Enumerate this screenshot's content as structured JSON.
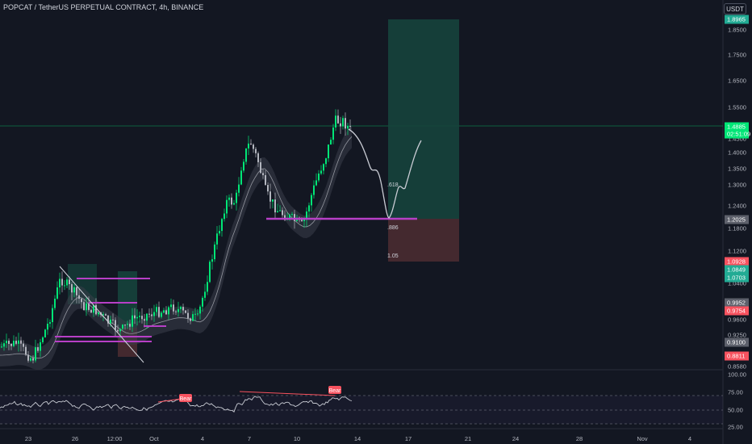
{
  "header": {
    "title": "POPCAT / TetherUS PERPETUAL CONTRACT, 4h, BINANCE",
    "currency": "USDT"
  },
  "price_axis": {
    "ticks": [
      "1.8500",
      "1.7500",
      "1.6500",
      "1.5500",
      "1.4500",
      "1.4000",
      "1.3500",
      "1.3000",
      "1.2400",
      "1.1800",
      "1.1200",
      "1.0400",
      "0.9600",
      "0.9250",
      "0.8580"
    ],
    "badges": [
      {
        "text": "1.8965",
        "color": "#22ab94"
      },
      {
        "text": "1.4885",
        "color": "#00e676"
      },
      {
        "text": "02:51:09",
        "color": "#00e676"
      },
      {
        "text": "1.2025",
        "color": "#5d606b"
      },
      {
        "text": "1.0928",
        "color": "#f7525f"
      },
      {
        "text": "1.0849",
        "color": "#22ab94"
      },
      {
        "text": "1.0703",
        "color": "#22ab94"
      },
      {
        "text": "0.9952",
        "color": "#5d606b"
      },
      {
        "text": "0.9754",
        "color": "#f7525f"
      },
      {
        "text": "0.9100",
        "color": "#5d606b"
      },
      {
        "text": "0.8811",
        "color": "#f7525f"
      }
    ]
  },
  "rsi_axis": {
    "ticks": [
      "100.00",
      "75.00",
      "50.00",
      "25.00"
    ]
  },
  "time_axis": {
    "ticks": [
      "23",
      "26",
      "12:00",
      "Oct",
      "4",
      "7",
      "10",
      "14",
      "17",
      "21",
      "24",
      "28",
      "Nov",
      "4"
    ]
  },
  "annotations": {
    "fib_labels": [
      ".618",
      ".886",
      "1.05"
    ],
    "bear_labels": [
      "Bear",
      "Bear"
    ]
  },
  "colors": {
    "background": "#131722",
    "bull": "#00e676",
    "bear": "#b2b5be",
    "profit_zone": "#16433c",
    "loss_zone": "#4a2b31",
    "level_line": "#b73fc6",
    "band": "#3a3e4a"
  }
}
